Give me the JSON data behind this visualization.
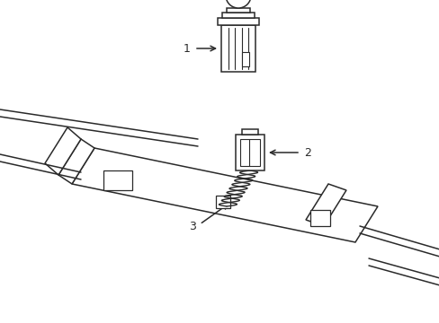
{
  "background_color": "#ffffff",
  "line_color": "#2a2a2a",
  "lw": 1.1,
  "fig_width": 4.89,
  "fig_height": 3.6
}
